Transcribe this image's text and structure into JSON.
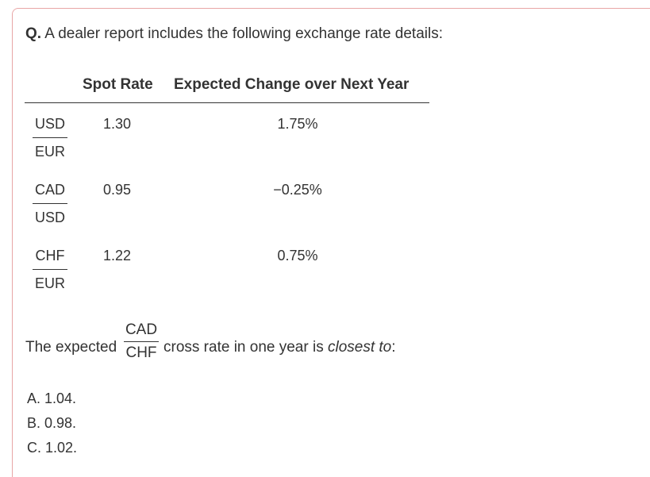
{
  "question": {
    "label": "Q.",
    "text": "A dealer report includes the following exchange rate details:"
  },
  "table": {
    "headers": {
      "spot_rate": "Spot Rate",
      "expected_change": "Expected Change over Next Year"
    },
    "rows": [
      {
        "numerator": "USD",
        "denominator": "EUR",
        "spot_rate": "1.30",
        "expected_change": "1.75%"
      },
      {
        "numerator": "CAD",
        "denominator": "USD",
        "spot_rate": "0.95",
        "expected_change": "−0.25%"
      },
      {
        "numerator": "CHF",
        "denominator": "EUR",
        "spot_rate": "1.22",
        "expected_change": "0.75%"
      }
    ]
  },
  "stem": {
    "prefix": "The expected",
    "numerator": "CAD",
    "denominator": "CHF",
    "middle": "cross rate in one year is",
    "emphasis": "closest to",
    "suffix": ":"
  },
  "options": [
    {
      "label": "A. 1.04."
    },
    {
      "label": "B. 0.98."
    },
    {
      "label": "C. 1.02."
    }
  ],
  "colors": {
    "card_border": "#e8a6a6",
    "text": "#333333"
  }
}
